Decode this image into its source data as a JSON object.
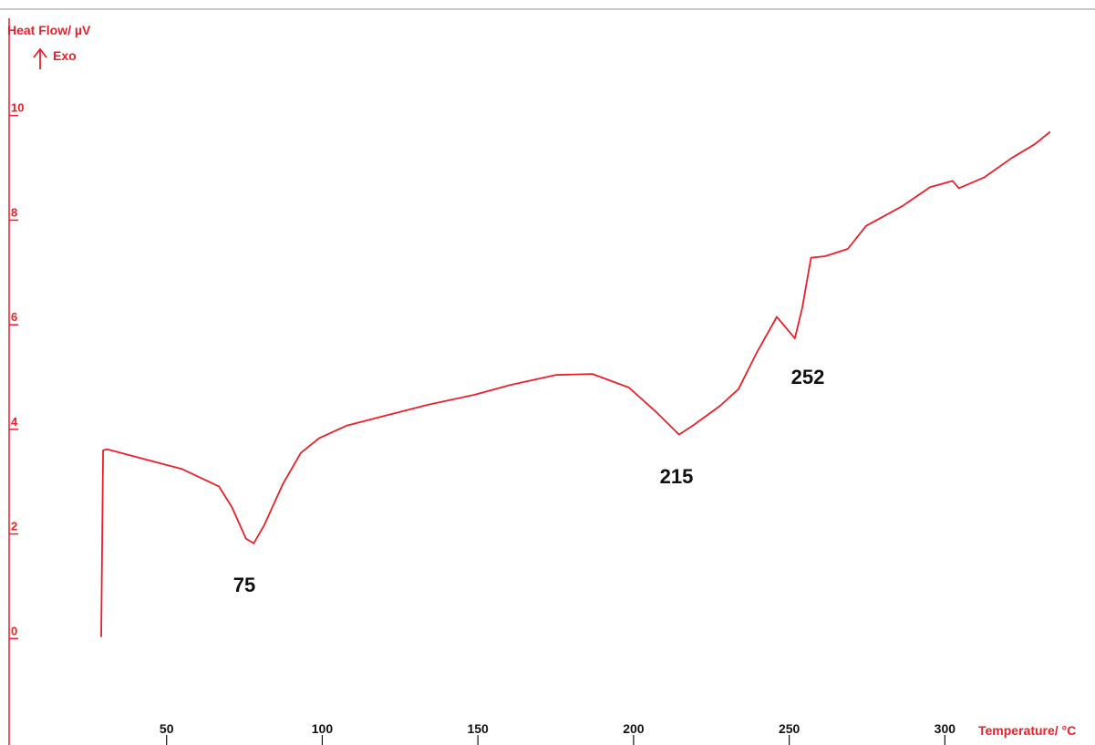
{
  "chart_data": {
    "type": "line",
    "y_label": "Heat Flow/ µV",
    "y_direction": "Exo",
    "x_label": "Temperature/ °C",
    "annotations": [
      "75",
      "215",
      "252"
    ],
    "color": "#e8202a",
    "x": [
      29,
      29.6,
      31,
      40.4,
      55,
      66.8,
      71,
      75.5,
      78,
      81.4,
      87.3,
      93.1,
      99,
      107.8,
      119.5,
      134,
      148.8,
      160.5,
      175,
      186.8,
      198.5,
      207.3,
      214.6,
      219,
      227.8,
      233.7,
      239.5,
      246,
      249,
      251.8,
      254.2,
      257,
      261.5,
      268.8,
      274.7,
      286.4,
      295.2,
      302.5,
      304.5,
      312.7,
      321.5,
      328.8,
      333.8
    ],
    "values": [
      0.03,
      3.6,
      3.62,
      3.47,
      3.24,
      2.91,
      2.51,
      1.91,
      1.82,
      2.17,
      2.95,
      3.55,
      3.83,
      4.07,
      4.25,
      4.47,
      4.66,
      4.85,
      5.04,
      5.06,
      4.8,
      4.33,
      3.9,
      4.07,
      4.45,
      4.77,
      5.46,
      6.15,
      5.94,
      5.74,
      6.33,
      7.28,
      7.31,
      7.45,
      7.89,
      8.27,
      8.63,
      8.75,
      8.61,
      8.82,
      9.19,
      9.45,
      9.69
    ],
    "xlim": [
      0,
      345
    ],
    "xticks": [
      50,
      100,
      150,
      200,
      250,
      300
    ],
    "ylim": [
      -2,
      12
    ],
    "yticks": [
      0,
      2,
      4,
      6,
      8,
      10
    ]
  }
}
